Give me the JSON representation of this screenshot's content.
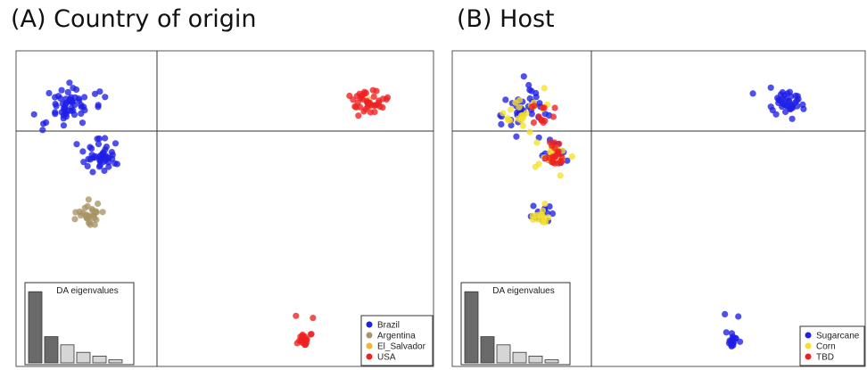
{
  "panels": [
    {
      "title": "(A) Country of origin",
      "legend": [
        {
          "label": "Brazil",
          "color": "#1f1fe6"
        },
        {
          "label": "Argentina",
          "color": "#a89466"
        },
        {
          "label": "El_Salvador",
          "color": "#f5b431"
        },
        {
          "label": "USA",
          "color": "#ee2020"
        }
      ],
      "eigen_title": "DA eigenvalues"
    },
    {
      "title": "(B) Host",
      "legend": [
        {
          "label": "Sugarcane",
          "color": "#1f1fe6"
        },
        {
          "label": "Corn",
          "color": "#f5e02a"
        },
        {
          "label": "TBD",
          "color": "#ee2020"
        }
      ],
      "eigen_title": "DA eigenvalues"
    }
  ],
  "chart_data": [
    {
      "type": "scatter",
      "title": "(A) Country of origin",
      "xlabel": "",
      "ylabel": "",
      "xlim": [
        0,
        100
      ],
      "ylim": [
        0,
        100
      ],
      "grid": false,
      "legend_position": "bottom-right",
      "series": [
        {
          "name": "Brazil",
          "color": "#1f1fe6",
          "clusters": [
            {
              "cx": 13,
              "cy": 82,
              "sx": 2.5,
              "sy": 4,
              "n": 60,
              "tilt": -0.7
            },
            {
              "cx": 20,
              "cy": 67,
              "sx": 2.2,
              "sy": 2.5,
              "n": 45,
              "tilt": 0
            }
          ]
        },
        {
          "name": "Argentina",
          "color": "#a89466",
          "clusters": [
            {
              "cx": 18,
              "cy": 48,
              "sx": 1.5,
              "sy": 1.5,
              "n": 30,
              "tilt": 0
            }
          ]
        },
        {
          "name": "El_Salvador",
          "color": "#f5b431",
          "clusters": [
            {
              "cx": 84,
              "cy": 84,
              "sx": 1,
              "sy": 0.8,
              "n": 3,
              "tilt": 0
            }
          ]
        },
        {
          "name": "USA",
          "color": "#ee2020",
          "clusters": [
            {
              "cx": 85,
              "cy": 84,
              "sx": 2.5,
              "sy": 2,
              "n": 40,
              "tilt": 0
            },
            {
              "cx": 69,
              "cy": 8,
              "sx": 0.8,
              "sy": 1.2,
              "n": 20,
              "tilt": 0
            },
            {
              "cx": 67,
              "cy": 16,
              "sx": 0.1,
              "sy": 0.1,
              "n": 1,
              "tilt": 0
            },
            {
              "cx": 71,
              "cy": 15.5,
              "sx": 0.1,
              "sy": 0.1,
              "n": 1,
              "tilt": 0
            }
          ]
        }
      ],
      "eigenvalues": [
        0.95,
        0.35,
        0.24,
        0.14,
        0.09,
        0.04
      ]
    },
    {
      "type": "scatter",
      "title": "(B) Host",
      "xlabel": "",
      "ylabel": "",
      "xlim": [
        0,
        100
      ],
      "ylim": [
        0,
        100
      ],
      "grid": false,
      "legend_position": "bottom-right",
      "series": [
        {
          "name": "Sugarcane",
          "color": "#1f1fe6",
          "clusters": [
            {
              "cx": 18,
              "cy": 82,
              "sx": 2.5,
              "sy": 4,
              "n": 40,
              "tilt": -0.7
            },
            {
              "cx": 25,
              "cy": 67,
              "sx": 2,
              "sy": 2.5,
              "n": 15,
              "tilt": 0
            },
            {
              "cx": 22,
              "cy": 48,
              "sx": 1.5,
              "sy": 1.5,
              "n": 12,
              "tilt": 0
            },
            {
              "cx": 81,
              "cy": 84,
              "sx": 2.5,
              "sy": 2,
              "n": 40,
              "tilt": 0
            },
            {
              "cx": 68,
              "cy": 8,
              "sx": 0.8,
              "sy": 1.2,
              "n": 18,
              "tilt": 0
            },
            {
              "cx": 66,
              "cy": 16.5,
              "sx": 0.1,
              "sy": 0.1,
              "n": 1,
              "tilt": 0
            },
            {
              "cx": 69.5,
              "cy": 16,
              "sx": 0.1,
              "sy": 0.1,
              "n": 1,
              "tilt": 0
            }
          ]
        },
        {
          "name": "Corn",
          "color": "#f5e02a",
          "clusters": [
            {
              "cx": 17,
              "cy": 82,
              "sx": 2.2,
              "sy": 3.5,
              "n": 22,
              "tilt": -0.7
            },
            {
              "cx": 24,
              "cy": 67,
              "sx": 1.8,
              "sy": 2.2,
              "n": 20,
              "tilt": 0
            },
            {
              "cx": 22,
              "cy": 47,
              "sx": 1.5,
              "sy": 1.5,
              "n": 14,
              "tilt": 0
            }
          ]
        },
        {
          "name": "TBD",
          "color": "#ee2020",
          "clusters": [
            {
              "cx": 21,
              "cy": 80,
              "sx": 2,
              "sy": 2,
              "n": 12,
              "tilt": -0.5
            },
            {
              "cx": 25,
              "cy": 67,
              "sx": 1.6,
              "sy": 2.2,
              "n": 20,
              "tilt": 0
            }
          ]
        }
      ],
      "eigenvalues": [
        0.95,
        0.35,
        0.24,
        0.14,
        0.09,
        0.04
      ]
    }
  ]
}
